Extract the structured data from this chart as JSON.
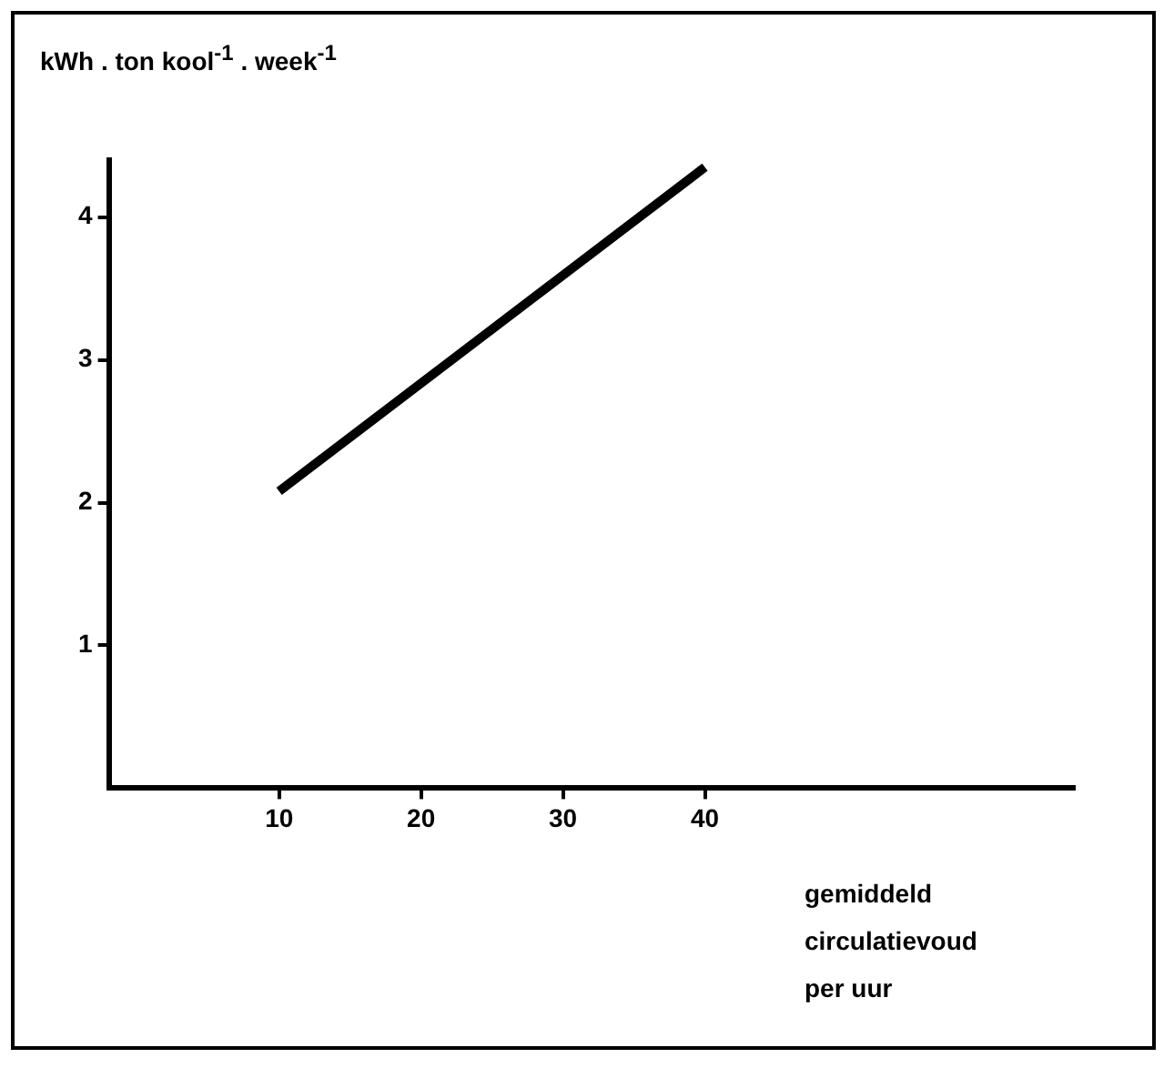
{
  "chart_data": {
    "type": "line",
    "ylabel": "kWh . ton kool$^{-1}$ . week$^{-1}$",
    "xlabel": "gemiddeld circulatievoud per uur",
    "series": [
      {
        "x": [
          10,
          40
        ],
        "values": [
          2.08,
          4.35
        ],
        "color": "#000000"
      }
    ],
    "xlim": [
      -2,
      66
    ],
    "xticks": [
      10,
      20,
      30,
      40
    ],
    "ylim": [
      0,
      4.4
    ],
    "yticks": [
      1,
      2,
      3,
      4
    ],
    "grid": false,
    "legend": false,
    "marker": "none",
    "line_style": "solid"
  }
}
